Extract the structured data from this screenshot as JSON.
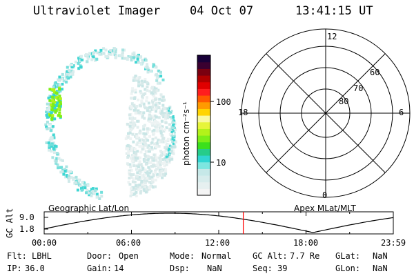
{
  "header": {
    "instrument": "Ultraviolet Imager",
    "date": "04 Oct 07",
    "time": "13:41:15 UT"
  },
  "colorbar": {
    "unit_label": "photon cm⁻²s⁻¹",
    "ticks": [
      "100",
      "10"
    ],
    "colors": [
      "#f4f4f4",
      "#e6f0f0",
      "#d7ecec",
      "#c6e8e8",
      "#7de6e0",
      "#31d5d2",
      "#26cc8a",
      "#3be01c",
      "#7cee18",
      "#b3f21a",
      "#e6f53a",
      "#f9f9a0",
      "#ffd400",
      "#ff9a00",
      "#ff5a00",
      "#ff1e1e",
      "#e00000",
      "#b00000",
      "#7a0010",
      "#3a0030",
      "#180038"
    ]
  },
  "polar_grid": {
    "mlt_labels": {
      "top": "12",
      "right": "6",
      "bottom": "0",
      "left": "18"
    },
    "lat_labels": [
      "60",
      "70",
      "80"
    ]
  },
  "timeline": {
    "y_axis_label": "GC Alt",
    "y_ticks": [
      "9.0",
      "1.8"
    ],
    "left_label": "Geographic Lat/Lon",
    "right_label": "Apex MLat/MLT",
    "x_ticks": [
      "00:00",
      "06:00",
      "12:00",
      "18:00",
      "23:59"
    ],
    "curve_color": "#000000",
    "marker_color": "#ff0000",
    "current_time_fraction": 0.5703
  },
  "status": {
    "row1": [
      {
        "label": "Flt:",
        "value": "LBHL"
      },
      {
        "label": "Door:",
        "value": "Open"
      },
      {
        "label": "Mode:",
        "value": "Normal"
      },
      {
        "label": "GC Alt:",
        "value": "7.7 Re"
      },
      {
        "label": "GLat:",
        "value": "NaN"
      }
    ],
    "row2": [
      {
        "label": "IP:",
        "value": "36.0"
      },
      {
        "label": "Gain:",
        "value": "14"
      },
      {
        "label": "Dsp:",
        "value": "NaN"
      },
      {
        "label": "Seq:",
        "value": "39"
      },
      {
        "label": "GLon:",
        "value": "NaN"
      }
    ]
  }
}
